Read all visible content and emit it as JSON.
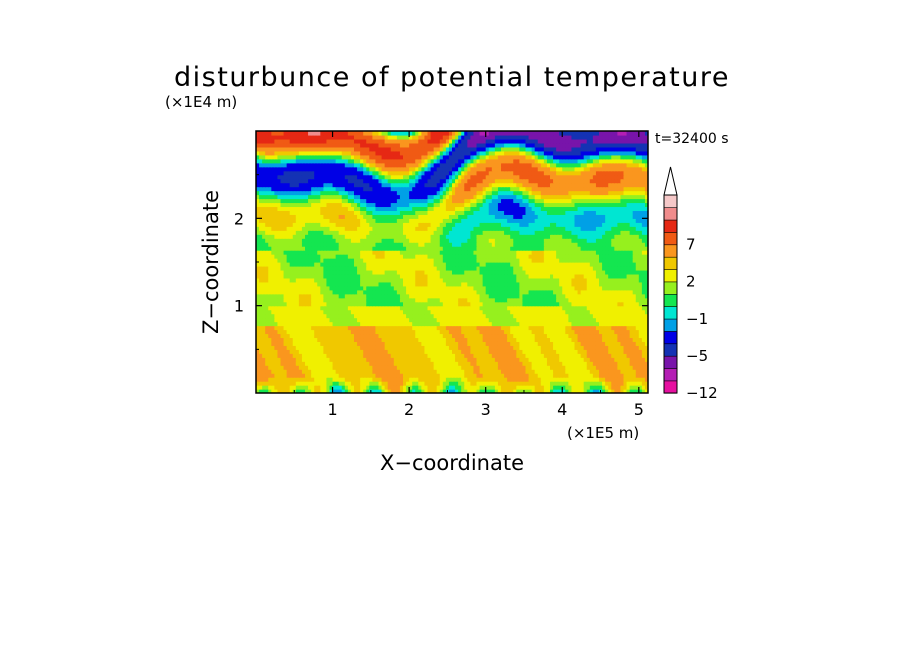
{
  "chart_data": {
    "type": "heatmap",
    "title": "disturbunce of potential temperature",
    "xlabel": "X−coordinate",
    "ylabel": "Z−coordinate",
    "x_unit": "(×1E5 m)",
    "y_unit": "(×1E4 m)",
    "time_label": "t=32400 s",
    "xlim": [
      0,
      5.12
    ],
    "ylim": [
      0,
      3.0
    ],
    "x_ticks": [
      "1",
      "2",
      "3",
      "4",
      "5"
    ],
    "x_tick_values": [
      1,
      2,
      3,
      4,
      5
    ],
    "y_ticks": [
      "1",
      "2"
    ],
    "y_tick_values": [
      1,
      2
    ],
    "colorbar": {
      "levels": [
        -12,
        -9,
        -7,
        -5,
        -3,
        -2,
        -1,
        0,
        1,
        2,
        3,
        5,
        7,
        9,
        12
      ],
      "colors": [
        "#e610a0",
        "#b41eb4",
        "#7814aa",
        "#1432b4",
        "#0000e6",
        "#00a0e6",
        "#00e6d2",
        "#14e650",
        "#96f01e",
        "#f0f000",
        "#f0c800",
        "#fa961e",
        "#f05a14",
        "#e62814",
        "#f08c8c",
        "#f5c8c8"
      ],
      "tick_labels": [
        "7",
        "2",
        "−1",
        "−5",
        "−12"
      ],
      "tick_values": [
        7,
        2,
        -1,
        -5,
        -12
      ],
      "extend": "max"
    }
  }
}
